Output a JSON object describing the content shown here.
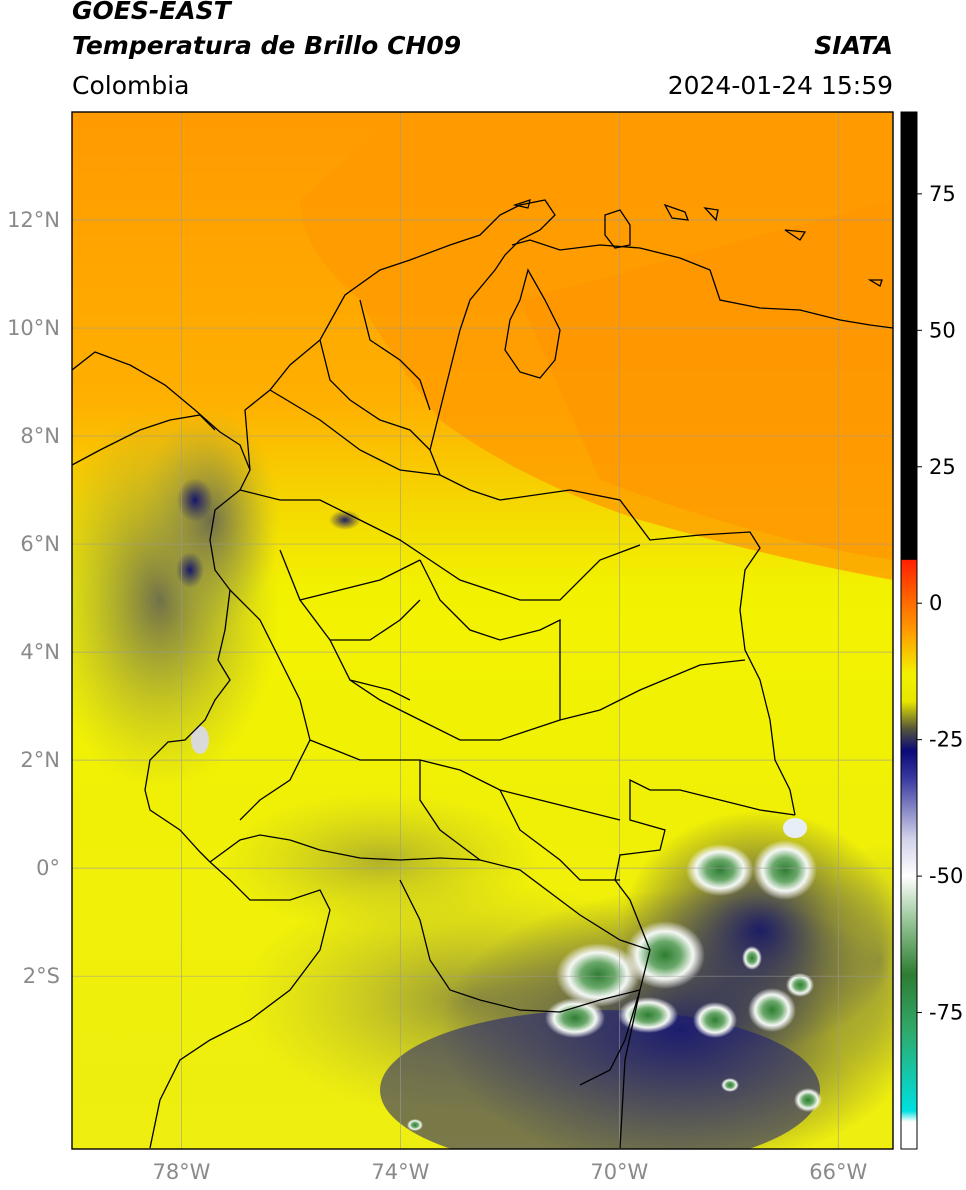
{
  "header": {
    "satellite": "GOES-EAST",
    "product": "Temperatura de Brillo CH09",
    "region": "Colombia",
    "organization": "SIATA",
    "datetime": "2024-01-24 15:59"
  },
  "map": {
    "lon_range": [
      -80,
      -65
    ],
    "lat_range": [
      -5.2,
      14
    ],
    "lat_ticks": [
      {
        "value": 12,
        "label": "12°N"
      },
      {
        "value": 10,
        "label": "10°N"
      },
      {
        "value": 8,
        "label": "8°N"
      },
      {
        "value": 6,
        "label": "6°N"
      },
      {
        "value": 4,
        "label": "4°N"
      },
      {
        "value": 2,
        "label": "2°N"
      },
      {
        "value": 0,
        "label": "0°"
      },
      {
        "value": -2,
        "label": "2°S"
      }
    ],
    "lon_ticks": [
      {
        "value": -78,
        "label": "78°W"
      },
      {
        "value": -74,
        "label": "74°W"
      },
      {
        "value": -70,
        "label": "70°W"
      },
      {
        "value": -66,
        "label": "66°W"
      }
    ],
    "gridlines": true
  },
  "colorbar": {
    "range": [
      -100,
      90
    ],
    "ticks": [
      {
        "value": 75,
        "label": "75"
      },
      {
        "value": 50,
        "label": "50"
      },
      {
        "value": 25,
        "label": "25"
      },
      {
        "value": 0,
        "label": "0"
      },
      {
        "value": -25,
        "label": "-25"
      },
      {
        "value": -50,
        "label": "-50"
      },
      {
        "value": -75,
        "label": "-75"
      }
    ],
    "stops": [
      {
        "value": 90,
        "color": "#000000"
      },
      {
        "value": 8,
        "color": "#000000"
      },
      {
        "value": 7.9,
        "color": "#ff2000"
      },
      {
        "value": 2,
        "color": "#ff5a00"
      },
      {
        "value": -5,
        "color": "#ff9a00"
      },
      {
        "value": -13,
        "color": "#f2f200"
      },
      {
        "value": -18,
        "color": "#e6e600"
      },
      {
        "value": -23,
        "color": "#55553a"
      },
      {
        "value": -27,
        "color": "#0a0a78"
      },
      {
        "value": -32,
        "color": "#3838a0"
      },
      {
        "value": -43,
        "color": "#d0d0ea"
      },
      {
        "value": -50,
        "color": "#ffffff"
      },
      {
        "value": -58,
        "color": "#9ac89a"
      },
      {
        "value": -68,
        "color": "#2e7d32"
      },
      {
        "value": -78,
        "color": "#30a868"
      },
      {
        "value": -93,
        "color": "#00e0e0"
      },
      {
        "value": -95,
        "color": "#ffffff"
      },
      {
        "value": -100,
        "color": "#ffffff"
      }
    ]
  }
}
